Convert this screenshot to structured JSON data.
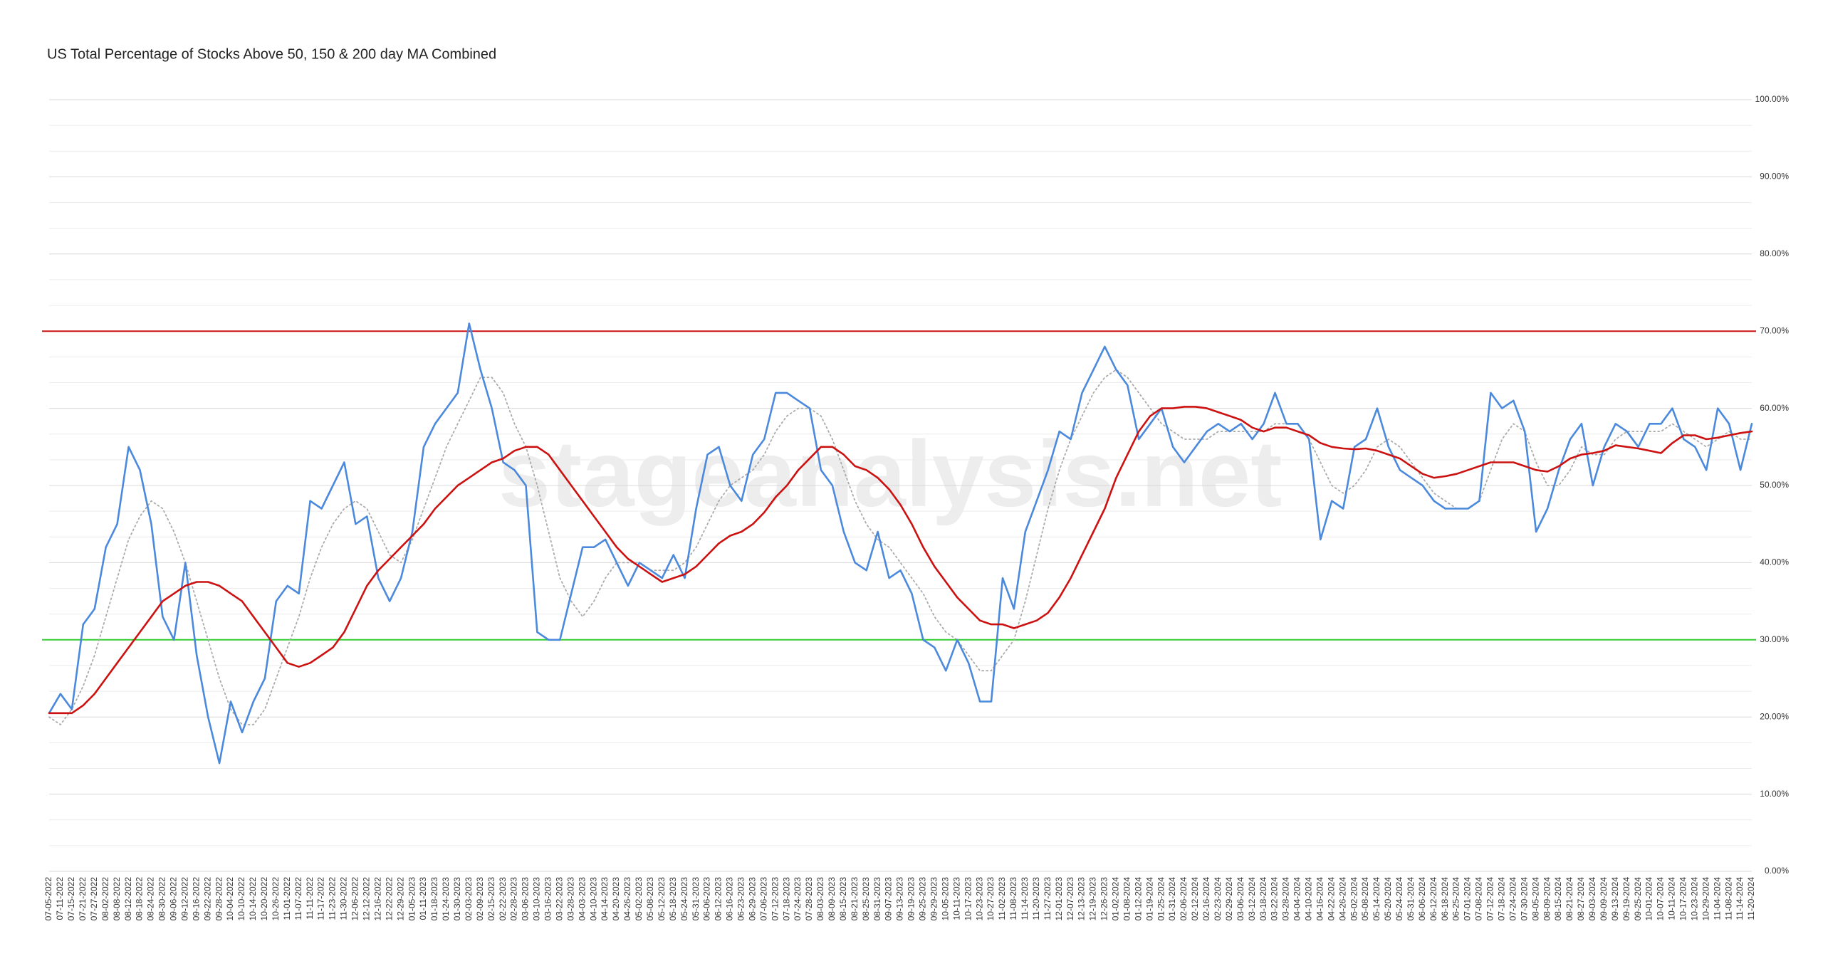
{
  "chart_data": {
    "type": "line",
    "title": "US Total Percentage of Stocks Above 50, 150 & 200 day MA Combined",
    "watermark": "stageanalysis.net",
    "categories": [
      "07-05-2022",
      "07-11-2022",
      "07-15-2022",
      "07-21-2022",
      "07-27-2022",
      "08-02-2022",
      "08-08-2022",
      "08-12-2022",
      "08-18-2022",
      "08-24-2022",
      "08-30-2022",
      "09-06-2022",
      "09-12-2022",
      "09-16-2022",
      "09-22-2022",
      "09-28-2022",
      "10-04-2022",
      "10-10-2022",
      "10-14-2022",
      "10-20-2022",
      "10-26-2022",
      "11-01-2022",
      "11-07-2022",
      "11-11-2022",
      "11-17-2022",
      "11-23-2022",
      "11-30-2022",
      "12-06-2022",
      "12-12-2022",
      "12-16-2022",
      "12-22-2022",
      "12-29-2022",
      "01-05-2023",
      "01-11-2023",
      "01-18-2023",
      "01-24-2023",
      "01-30-2023",
      "02-03-2023",
      "02-09-2023",
      "02-15-2023",
      "02-22-2023",
      "02-28-2023",
      "03-06-2023",
      "03-10-2023",
      "03-16-2023",
      "03-22-2023",
      "03-28-2023",
      "04-03-2023",
      "04-10-2023",
      "04-14-2023",
      "04-20-2023",
      "04-26-2023",
      "05-02-2023",
      "05-08-2023",
      "05-12-2023",
      "05-18-2023",
      "05-24-2023",
      "05-31-2023",
      "06-06-2023",
      "06-12-2023",
      "06-16-2023",
      "06-23-2023",
      "06-29-2023",
      "07-06-2023",
      "07-12-2023",
      "07-18-2023",
      "07-24-2023",
      "07-28-2023",
      "08-03-2023",
      "08-09-2023",
      "08-15-2023",
      "08-21-2023",
      "08-25-2023",
      "08-31-2023",
      "09-07-2023",
      "09-13-2023",
      "09-19-2023",
      "09-25-2023",
      "09-29-2023",
      "10-05-2023",
      "10-11-2023",
      "10-17-2023",
      "10-23-2023",
      "10-27-2023",
      "11-02-2023",
      "11-08-2023",
      "11-14-2023",
      "11-20-2023",
      "11-27-2023",
      "12-01-2023",
      "12-07-2023",
      "12-13-2023",
      "12-19-2023",
      "12-26-2023",
      "01-02-2024",
      "01-08-2024",
      "01-12-2024",
      "01-19-2024",
      "01-25-2024",
      "01-31-2024",
      "02-06-2024",
      "02-12-2024",
      "02-16-2024",
      "02-23-2024",
      "02-29-2024",
      "03-06-2024",
      "03-12-2024",
      "03-18-2024",
      "03-22-2024",
      "03-28-2024",
      "04-04-2024",
      "04-10-2024",
      "04-16-2024",
      "04-22-2024",
      "04-26-2024",
      "05-02-2024",
      "05-08-2024",
      "05-14-2024",
      "05-20-2024",
      "05-24-2024",
      "05-31-2024",
      "06-06-2024",
      "06-12-2024",
      "06-18-2024",
      "06-25-2024",
      "07-01-2024",
      "07-08-2024",
      "07-12-2024",
      "07-18-2024",
      "07-24-2024",
      "07-30-2024",
      "08-05-2024",
      "08-09-2024",
      "08-15-2024",
      "08-21-2024",
      "08-27-2024",
      "09-03-2024",
      "09-09-2024",
      "09-13-2024",
      "09-19-2024",
      "09-25-2024",
      "10-01-2024",
      "10-07-2024",
      "10-11-2024",
      "10-17-2024",
      "10-23-2024",
      "10-29-2024",
      "11-04-2024",
      "11-08-2024",
      "11-14-2024",
      "11-20-2024"
    ],
    "series": [
      {
        "color": "#aaaaaa",
        "dashed": true,
        "values": [
          20,
          19,
          21,
          24,
          28,
          33,
          38,
          43,
          46,
          48,
          47,
          44,
          40,
          35,
          30,
          25,
          21,
          19,
          19,
          21,
          25,
          29,
          33,
          38,
          42,
          45,
          47,
          48,
          47,
          44,
          41,
          40,
          43,
          47,
          51,
          55,
          58,
          61,
          64,
          64,
          62,
          58,
          55,
          50,
          44,
          38,
          35,
          33,
          35,
          38,
          40,
          40,
          40,
          39,
          39,
          39,
          40,
          42,
          45,
          48,
          50,
          51,
          52,
          54,
          57,
          59,
          60,
          60,
          59,
          56,
          52,
          48,
          45,
          43,
          42,
          40,
          38,
          36,
          33,
          31,
          30,
          28,
          26,
          26,
          28,
          30,
          35,
          41,
          47,
          52,
          56,
          59,
          62,
          64,
          65,
          64,
          62,
          60,
          58,
          57,
          56,
          56,
          56,
          57,
          57,
          57,
          57,
          57,
          58,
          58,
          58,
          56,
          53,
          50,
          49,
          50,
          52,
          55,
          56,
          55,
          53,
          51,
          49,
          48,
          47,
          47,
          48,
          52,
          56,
          58,
          57,
          53,
          50,
          50,
          52,
          55,
          54,
          54,
          56,
          57,
          57,
          57,
          57,
          58,
          57,
          56,
          55,
          56,
          57,
          56,
          56
        ]
      },
      {
        "color": "#4a89dc",
        "values": [
          20.5,
          23,
          21,
          32,
          34,
          42,
          45,
          55,
          52,
          45,
          33,
          30,
          40,
          28,
          20,
          14,
          22,
          18,
          22,
          25,
          35,
          37,
          36,
          48,
          47,
          50,
          53,
          45,
          46,
          38,
          35,
          38,
          44,
          55,
          58,
          60,
          62,
          71,
          65,
          60,
          53,
          52,
          50,
          31,
          30,
          30,
          36,
          42,
          42,
          43,
          40,
          37,
          40,
          39,
          38,
          41,
          38,
          47,
          54,
          55,
          50,
          48,
          54,
          56,
          62,
          62,
          61,
          60,
          52,
          50,
          44,
          40,
          39,
          44,
          38,
          39,
          36,
          30,
          29,
          26,
          30,
          27,
          22,
          22,
          38,
          34,
          44,
          48,
          52,
          57,
          56,
          62,
          65,
          68,
          65,
          63,
          56,
          58,
          60,
          55,
          53,
          55,
          57,
          58,
          57,
          58,
          56,
          58,
          62,
          58,
          58,
          56,
          43,
          48,
          47,
          55,
          56,
          60,
          55,
          52,
          51,
          50,
          48,
          47,
          47,
          47,
          48,
          62,
          60,
          61,
          57,
          44,
          47,
          52,
          56,
          58,
          50,
          55,
          58,
          57,
          55,
          58,
          58,
          60,
          56,
          55,
          52,
          60,
          58,
          52,
          58
        ]
      },
      {
        "color": "#cc1111",
        "values": [
          20.5,
          20.5,
          20.5,
          21.5,
          23,
          25,
          27,
          29,
          31,
          33,
          35,
          36,
          37,
          37.5,
          37.5,
          37,
          36,
          35,
          33,
          31,
          29,
          27,
          26.5,
          27,
          28,
          29,
          31,
          34,
          37,
          39,
          40.5,
          42,
          43.5,
          45,
          47,
          48.5,
          50,
          51,
          52,
          53,
          53.5,
          54.5,
          55,
          55,
          54,
          52,
          50,
          48,
          46,
          44,
          42,
          40.5,
          39.5,
          38.5,
          37.5,
          38,
          38.5,
          39.5,
          41,
          42.5,
          43.5,
          44,
          45,
          46.5,
          48.5,
          50,
          52,
          53.5,
          55,
          55,
          54,
          52.5,
          52,
          51,
          49.5,
          47.5,
          45,
          42,
          39.5,
          37.5,
          35.5,
          34,
          32.5,
          32,
          32,
          31.5,
          32,
          32.5,
          33.5,
          35.5,
          38,
          41,
          44,
          47,
          51,
          54,
          57,
          59,
          60,
          60,
          60.2,
          60.2,
          60,
          59.5,
          59,
          58.5,
          57.5,
          57,
          57.5,
          57.5,
          57,
          56.5,
          55.5,
          55,
          54.8,
          54.7,
          54.8,
          54.5,
          54,
          53.5,
          52.5,
          51.5,
          51,
          51.2,
          51.5,
          52,
          52.5,
          53,
          53,
          53,
          52.5,
          52,
          51.8,
          52.5,
          53.5,
          54,
          54.2,
          54.5,
          55.2,
          55,
          54.8,
          54.5,
          54.2,
          55.5,
          56.5,
          56.5,
          56,
          56.2,
          56.5,
          56.8,
          57
        ]
      }
    ],
    "reference_lines": [
      {
        "value": 70,
        "color": "#cc1111"
      },
      {
        "value": 30,
        "color": "#33cc33"
      }
    ],
    "ylim": [
      0,
      100
    ],
    "yticks": [
      {
        "value": 0,
        "label": "0.00%"
      },
      {
        "value": 10,
        "label": "10.00%"
      },
      {
        "value": 20,
        "label": "20.00%"
      },
      {
        "value": 30,
        "label": "30.00%"
      },
      {
        "value": 40,
        "label": "40.00%"
      },
      {
        "value": 50,
        "label": "50.00%"
      },
      {
        "value": 60,
        "label": "60.00%"
      },
      {
        "value": 70,
        "label": "70.00%"
      },
      {
        "value": 80,
        "label": "80.00%"
      },
      {
        "value": 90,
        "label": "90.00%"
      },
      {
        "value": 100,
        "label": "100.00%"
      }
    ],
    "grid": true,
    "minor_gridlines_per_tick": 3,
    "y_axis_side": "right"
  }
}
